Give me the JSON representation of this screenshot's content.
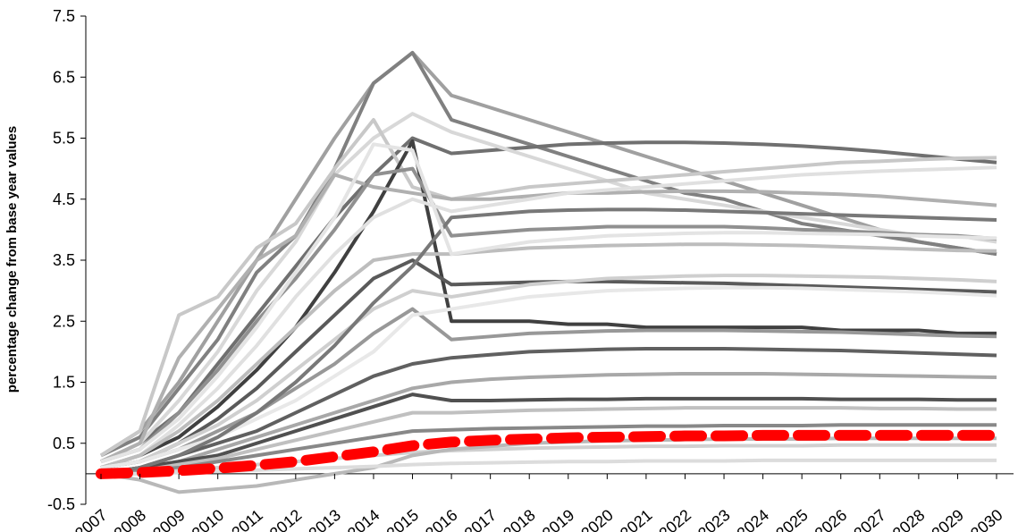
{
  "chart_data": {
    "type": "line",
    "ylabel": "percentage change from base year values",
    "categories": [
      "2007",
      "2008",
      "2009",
      "2010",
      "2011",
      "2012",
      "2013",
      "2014",
      "2015",
      "2016",
      "2017",
      "2018",
      "2019",
      "2020",
      "2021",
      "2022",
      "2023",
      "2024",
      "2025",
      "2026",
      "2027",
      "2028",
      "2029",
      "2030"
    ],
    "ylim": [
      -0.5,
      7.5
    ],
    "yticks": [
      -0.5,
      0.5,
      1.5,
      2.5,
      3.5,
      4.5,
      5.5,
      6.5,
      7.5
    ],
    "series": [
      {
        "color": "#a0a0a0",
        "values": [
          0.3,
          0.7,
          1.5,
          2.5,
          3.5,
          4.5,
          5.5,
          6.4,
          6.9,
          6.2,
          6.0,
          5.8,
          5.6,
          5.4,
          5.2,
          5.0,
          4.8,
          4.6,
          4.4,
          4.2,
          4.0,
          3.8,
          3.7,
          3.6
        ]
      },
      {
        "color": "#808080",
        "values": [
          0.3,
          0.6,
          1.4,
          2.2,
          3.3,
          3.9,
          5.0,
          6.4,
          6.9,
          5.8,
          5.6,
          5.4,
          5.2,
          5.0,
          4.8,
          4.6,
          4.5,
          4.3,
          4.1,
          4.0,
          3.9,
          3.8,
          3.7,
          3.6
        ]
      },
      {
        "color": "#707070",
        "values": [
          0.2,
          0.5,
          1.0,
          1.8,
          2.6,
          3.4,
          4.2,
          4.9,
          5.5,
          5.25,
          5.3,
          5.35,
          5.4,
          5.42,
          5.43,
          5.43,
          5.42,
          5.4,
          5.37,
          5.33,
          5.28,
          5.22,
          5.16,
          5.1
        ]
      },
      {
        "color": "#d8d8d8",
        "values": [
          0.2,
          0.5,
          1.2,
          2.0,
          3.0,
          3.8,
          4.9,
          5.5,
          5.9,
          5.6,
          5.4,
          5.2,
          5.0,
          4.8,
          4.6,
          4.5,
          4.4,
          4.3,
          4.2,
          4.1,
          4.0,
          3.9,
          3.9,
          3.8
        ]
      },
      {
        "color": "#c8c8c8",
        "values": [
          0.3,
          0.7,
          2.6,
          2.9,
          3.7,
          4.1,
          5.0,
          5.8,
          4.7,
          4.5,
          4.6,
          4.7,
          4.75,
          4.8,
          4.85,
          4.9,
          4.95,
          5.0,
          5.05,
          5.1,
          5.12,
          5.15,
          5.17,
          5.18
        ]
      },
      {
        "color": "#404040",
        "values": [
          0.1,
          0.3,
          0.6,
          1.1,
          1.7,
          2.4,
          3.3,
          4.3,
          5.45,
          2.5,
          2.5,
          2.5,
          2.45,
          2.45,
          2.4,
          2.4,
          2.4,
          2.4,
          2.4,
          2.35,
          2.35,
          2.35,
          2.3,
          2.3
        ]
      },
      {
        "color": "#b0b0b0",
        "values": [
          0.2,
          0.5,
          1.9,
          2.7,
          3.5,
          3.9,
          4.9,
          4.7,
          4.6,
          4.5,
          4.5,
          4.55,
          4.6,
          4.6,
          4.62,
          4.63,
          4.63,
          4.62,
          4.6,
          4.58,
          4.55,
          4.5,
          4.45,
          4.4
        ]
      },
      {
        "color": "#909090",
        "values": [
          0.2,
          0.4,
          1.0,
          1.7,
          2.5,
          3.2,
          4.0,
          4.9,
          5.0,
          3.9,
          3.95,
          4.0,
          4.02,
          4.05,
          4.05,
          4.05,
          4.05,
          4.03,
          4.0,
          3.98,
          3.95,
          3.92,
          3.9,
          3.85
        ]
      },
      {
        "color": "#e0e0e0",
        "values": [
          0.1,
          0.3,
          0.8,
          1.4,
          2.1,
          2.9,
          3.6,
          4.2,
          4.5,
          4.3,
          4.4,
          4.5,
          4.6,
          4.65,
          4.7,
          4.75,
          4.8,
          4.85,
          4.9,
          4.93,
          4.96,
          4.98,
          5.0,
          5.02
        ]
      },
      {
        "color": "#bdbdbd",
        "values": [
          0.1,
          0.3,
          0.7,
          1.2,
          1.8,
          2.4,
          3.0,
          3.5,
          3.6,
          3.6,
          3.65,
          3.7,
          3.72,
          3.74,
          3.75,
          3.76,
          3.76,
          3.75,
          3.74,
          3.72,
          3.7,
          3.68,
          3.66,
          3.65
        ]
      },
      {
        "color": "#5a5a5a",
        "values": [
          0.1,
          0.2,
          0.5,
          0.9,
          1.4,
          2.0,
          2.6,
          3.2,
          3.5,
          3.1,
          3.12,
          3.14,
          3.15,
          3.15,
          3.14,
          3.13,
          3.12,
          3.1,
          3.08,
          3.06,
          3.04,
          3.02,
          3.0,
          2.98
        ]
      },
      {
        "color": "#cfcfcf",
        "values": [
          0.1,
          0.2,
          0.5,
          0.8,
          1.2,
          1.7,
          2.2,
          2.7,
          3.0,
          2.9,
          3.0,
          3.1,
          3.15,
          3.2,
          3.22,
          3.24,
          3.25,
          3.25,
          3.24,
          3.23,
          3.22,
          3.2,
          3.18,
          3.15
        ]
      },
      {
        "color": "#989898",
        "values": [
          0.1,
          0.2,
          0.4,
          0.7,
          1.0,
          1.4,
          1.8,
          2.3,
          2.7,
          2.2,
          2.25,
          2.3,
          2.32,
          2.34,
          2.35,
          2.35,
          2.35,
          2.34,
          2.33,
          2.32,
          2.3,
          2.28,
          2.26,
          2.25
        ]
      },
      {
        "color": "#e8e8e8",
        "values": [
          0.1,
          0.2,
          0.4,
          0.6,
          0.9,
          1.2,
          1.6,
          2.0,
          2.6,
          2.7,
          2.8,
          2.9,
          2.95,
          3.0,
          3.02,
          3.04,
          3.05,
          3.05,
          3.04,
          3.02,
          3.0,
          2.98,
          2.95,
          2.92
        ]
      },
      {
        "color": "#606060",
        "values": [
          0.0,
          0.1,
          0.3,
          0.5,
          0.7,
          1.0,
          1.3,
          1.6,
          1.8,
          1.9,
          1.95,
          2.0,
          2.02,
          2.04,
          2.05,
          2.05,
          2.05,
          2.04,
          2.03,
          2.02,
          2.0,
          1.98,
          1.96,
          1.94
        ]
      },
      {
        "color": "#a8a8a8",
        "values": [
          0.0,
          0.1,
          0.2,
          0.4,
          0.6,
          0.8,
          1.0,
          1.2,
          1.4,
          1.5,
          1.55,
          1.58,
          1.6,
          1.62,
          1.63,
          1.64,
          1.64,
          1.64,
          1.63,
          1.62,
          1.61,
          1.6,
          1.59,
          1.58
        ]
      },
      {
        "color": "#505050",
        "values": [
          0.0,
          0.1,
          0.2,
          0.3,
          0.5,
          0.7,
          0.9,
          1.1,
          1.3,
          1.2,
          1.2,
          1.21,
          1.22,
          1.22,
          1.23,
          1.23,
          1.23,
          1.23,
          1.23,
          1.22,
          1.22,
          1.22,
          1.21,
          1.21
        ]
      },
      {
        "color": "#c0c0c0",
        "values": [
          0.0,
          0.05,
          0.15,
          0.25,
          0.4,
          0.55,
          0.7,
          0.85,
          1.0,
          1.0,
          1.02,
          1.04,
          1.05,
          1.06,
          1.07,
          1.08,
          1.08,
          1.08,
          1.08,
          1.08,
          1.07,
          1.07,
          1.06,
          1.06
        ]
      },
      {
        "color": "#888888",
        "values": [
          0.0,
          0.05,
          0.1,
          0.2,
          0.3,
          0.4,
          0.5,
          0.6,
          0.7,
          0.72,
          0.74,
          0.75,
          0.76,
          0.77,
          0.78,
          0.78,
          0.79,
          0.79,
          0.79,
          0.8,
          0.8,
          0.8,
          0.8,
          0.8
        ]
      },
      {
        "color": "#d0d0d0",
        "values": [
          0.0,
          0.0,
          0.05,
          0.1,
          0.15,
          0.2,
          0.25,
          0.3,
          0.35,
          0.38,
          0.4,
          0.42,
          0.43,
          0.44,
          0.45,
          0.45,
          0.46,
          0.46,
          0.46,
          0.47,
          0.47,
          0.47,
          0.47,
          0.47
        ]
      },
      {
        "color": "#b8b8b8",
        "values": [
          0.0,
          -0.1,
          -0.3,
          -0.25,
          -0.2,
          -0.1,
          0.0,
          0.1,
          0.3,
          0.4,
          0.45,
          0.5,
          0.52,
          0.54,
          0.55,
          0.56,
          0.57,
          0.57,
          0.57,
          0.58,
          0.58,
          0.58,
          0.58,
          0.58
        ]
      },
      {
        "color": "#dcdcdc",
        "values": [
          0.0,
          0.0,
          0.02,
          0.04,
          0.06,
          0.08,
          0.1,
          0.12,
          0.15,
          0.17,
          0.18,
          0.19,
          0.2,
          0.2,
          0.21,
          0.21,
          0.21,
          0.22,
          0.22,
          0.22,
          0.22,
          0.22,
          0.22,
          0.22
        ]
      },
      {
        "color": "#787878",
        "values": [
          0.0,
          0.1,
          0.3,
          0.6,
          1.0,
          1.5,
          2.1,
          2.8,
          3.4,
          4.2,
          4.25,
          4.3,
          4.32,
          4.33,
          4.33,
          4.32,
          4.3,
          4.28,
          4.26,
          4.24,
          4.22,
          4.2,
          4.18,
          4.16
        ]
      },
      {
        "color": "#e4e4e4",
        "values": [
          0.2,
          0.4,
          0.9,
          1.6,
          2.4,
          3.3,
          4.2,
          5.4,
          5.3,
          3.6,
          3.7,
          3.8,
          3.85,
          3.9,
          3.92,
          3.94,
          3.95,
          3.95,
          3.94,
          3.93,
          3.92,
          3.9,
          3.88,
          3.86
        ]
      },
      {
        "color": "#ff0000",
        "dashed": true,
        "values": [
          0,
          0.02,
          0.05,
          0.09,
          0.14,
          0.2,
          0.28,
          0.36,
          0.46,
          0.52,
          0.55,
          0.57,
          0.59,
          0.6,
          0.61,
          0.62,
          0.62,
          0.63,
          0.63,
          0.63,
          0.63,
          0.63,
          0.63,
          0.63
        ]
      }
    ]
  }
}
